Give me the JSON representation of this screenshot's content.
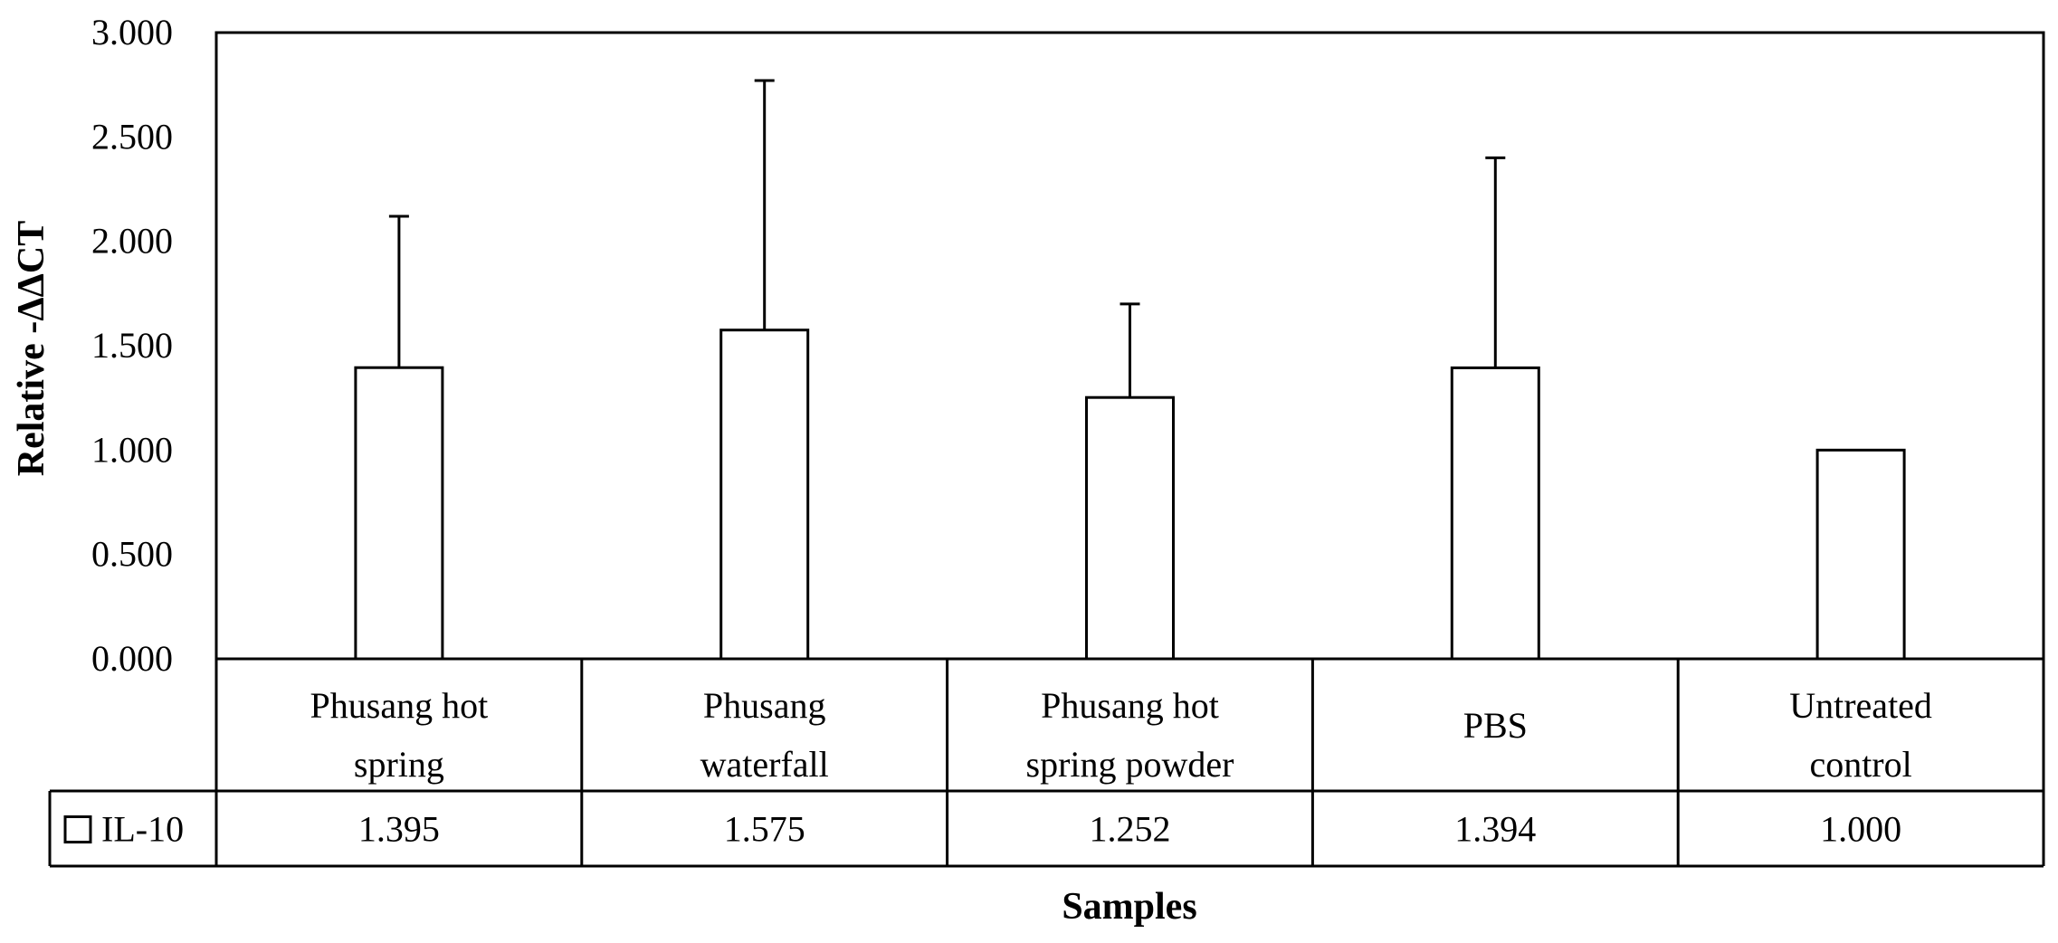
{
  "chart_data": {
    "type": "bar",
    "title": "",
    "xlabel": "Samples",
    "ylabel": "Relative -ΔΔCT",
    "ylim": [
      0,
      3
    ],
    "yticks": [
      "0.000",
      "0.500",
      "1.000",
      "1.500",
      "2.000",
      "2.500",
      "3.000"
    ],
    "grid": false,
    "legend": "data-table",
    "categories": [
      [
        "Phusang hot",
        "spring"
      ],
      [
        "Phusang",
        "waterfall"
      ],
      [
        "Phusang hot",
        "spring powder"
      ],
      [
        "PBS"
      ],
      [
        "Untreated",
        "control"
      ]
    ],
    "series": [
      {
        "name": "IL-10",
        "values": [
          1.395,
          1.575,
          1.252,
          1.394,
          1.0
        ],
        "value_labels": [
          "1.395",
          "1.575",
          "1.252",
          "1.394",
          "1.000"
        ],
        "error_upper": [
          2.12,
          2.77,
          1.7,
          2.4,
          null
        ],
        "color": "#ffffff",
        "edge_color": "#000000"
      }
    ]
  }
}
